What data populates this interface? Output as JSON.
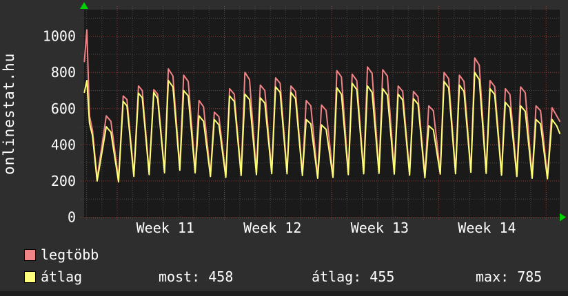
{
  "watermark": "onlinestat.hu",
  "legend": {
    "rows": [
      {
        "label": "legtöbb",
        "color": "#f08486"
      },
      {
        "label": "átlag",
        "color": "#ffff7d"
      }
    ],
    "stats": [
      {
        "text": "most: 458"
      },
      {
        "text": "átlag: 455"
      },
      {
        "text": "max: 785"
      }
    ]
  },
  "chart_data": {
    "type": "line",
    "title": "onlinestat.hu",
    "xlabel": "",
    "ylabel": "",
    "ylim": [
      0,
      1147
    ],
    "yticks": [
      0,
      200,
      400,
      600,
      800,
      1000
    ],
    "y_minor_ticks": [
      100,
      300,
      500,
      700,
      900,
      1100
    ],
    "x_tick_labels": [
      "Week 11",
      "Week 12",
      "Week 13",
      "Week 14"
    ],
    "x_total_days": 31.05,
    "week_start_day": 2.16,
    "week_label_center_day": 5.3,
    "days_per_week": 7,
    "grid": {
      "style": "dotted",
      "major_color": "#a03c38",
      "minor_color": "#4a4a4a"
    },
    "plot_background": "#1a1a1a",
    "axis_arrow_color": "#00d400",
    "legend_position": "bottom-left",
    "stats": {
      "most": 458,
      "atlag": 455,
      "max": 785
    },
    "series": [
      {
        "name": "legtöbb",
        "color": "#f08486",
        "points": [
          [
            0.02,
            860
          ],
          [
            0.18,
            1035
          ],
          [
            0.35,
            560
          ],
          [
            0.55,
            480
          ],
          [
            0.85,
            215
          ],
          [
            1.45,
            560
          ],
          [
            1.75,
            530
          ],
          [
            2.25,
            210
          ],
          [
            2.55,
            670
          ],
          [
            2.8,
            650
          ],
          [
            3.25,
            235
          ],
          [
            3.55,
            725
          ],
          [
            3.8,
            700
          ],
          [
            4.25,
            245
          ],
          [
            4.55,
            705
          ],
          [
            4.8,
            680
          ],
          [
            5.25,
            255
          ],
          [
            5.5,
            820
          ],
          [
            5.8,
            780
          ],
          [
            6.25,
            275
          ],
          [
            6.5,
            785
          ],
          [
            6.8,
            750
          ],
          [
            7.25,
            260
          ],
          [
            7.5,
            645
          ],
          [
            7.8,
            610
          ],
          [
            8.25,
            235
          ],
          [
            8.5,
            580
          ],
          [
            8.8,
            555
          ],
          [
            9.25,
            230
          ],
          [
            9.5,
            710
          ],
          [
            9.8,
            680
          ],
          [
            10.25,
            240
          ],
          [
            10.5,
            800
          ],
          [
            10.8,
            760
          ],
          [
            11.25,
            245
          ],
          [
            11.5,
            730
          ],
          [
            11.8,
            700
          ],
          [
            12.25,
            250
          ],
          [
            12.5,
            770
          ],
          [
            12.8,
            740
          ],
          [
            13.25,
            250
          ],
          [
            13.5,
            725
          ],
          [
            13.8,
            695
          ],
          [
            14.25,
            240
          ],
          [
            14.5,
            645
          ],
          [
            14.8,
            615
          ],
          [
            15.25,
            225
          ],
          [
            15.5,
            620
          ],
          [
            15.8,
            590
          ],
          [
            16.25,
            230
          ],
          [
            16.5,
            810
          ],
          [
            16.8,
            775
          ],
          [
            17.25,
            245
          ],
          [
            17.5,
            790
          ],
          [
            17.8,
            755
          ],
          [
            18.25,
            250
          ],
          [
            18.5,
            830
          ],
          [
            18.8,
            795
          ],
          [
            19.25,
            252
          ],
          [
            19.5,
            815
          ],
          [
            19.8,
            780
          ],
          [
            20.25,
            248
          ],
          [
            20.5,
            725
          ],
          [
            20.8,
            695
          ],
          [
            21.25,
            242
          ],
          [
            21.5,
            695
          ],
          [
            21.8,
            665
          ],
          [
            22.25,
            228
          ],
          [
            22.5,
            615
          ],
          [
            22.8,
            588
          ],
          [
            23.25,
            248
          ],
          [
            23.5,
            800
          ],
          [
            23.8,
            765
          ],
          [
            24.25,
            250
          ],
          [
            24.5,
            785
          ],
          [
            24.8,
            750
          ],
          [
            25.25,
            258
          ],
          [
            25.5,
            880
          ],
          [
            25.8,
            840
          ],
          [
            26.25,
            252
          ],
          [
            26.5,
            755
          ],
          [
            26.8,
            722
          ],
          [
            27.25,
            242
          ],
          [
            27.5,
            710
          ],
          [
            27.8,
            678
          ],
          [
            28.25,
            235
          ],
          [
            28.5,
            720
          ],
          [
            28.8,
            688
          ],
          [
            29.25,
            225
          ],
          [
            29.5,
            615
          ],
          [
            29.8,
            588
          ],
          [
            30.25,
            222
          ],
          [
            30.55,
            605
          ],
          [
            30.85,
            560
          ],
          [
            31.05,
            530
          ]
        ]
      },
      {
        "name": "átlag",
        "color": "#ffff78",
        "points": [
          [
            0.02,
            690
          ],
          [
            0.18,
            755
          ],
          [
            0.35,
            520
          ],
          [
            0.55,
            450
          ],
          [
            0.85,
            200
          ],
          [
            1.45,
            500
          ],
          [
            1.75,
            470
          ],
          [
            2.25,
            195
          ],
          [
            2.55,
            640
          ],
          [
            2.8,
            615
          ],
          [
            3.25,
            225
          ],
          [
            3.55,
            685
          ],
          [
            3.8,
            660
          ],
          [
            4.25,
            235
          ],
          [
            4.55,
            690
          ],
          [
            4.8,
            655
          ],
          [
            5.25,
            245
          ],
          [
            5.5,
            755
          ],
          [
            5.8,
            720
          ],
          [
            6.25,
            260
          ],
          [
            6.5,
            700
          ],
          [
            6.8,
            670
          ],
          [
            7.25,
            245
          ],
          [
            7.5,
            560
          ],
          [
            7.8,
            530
          ],
          [
            8.25,
            225
          ],
          [
            8.5,
            540
          ],
          [
            8.8,
            510
          ],
          [
            9.25,
            220
          ],
          [
            9.5,
            670
          ],
          [
            9.8,
            640
          ],
          [
            10.25,
            230
          ],
          [
            10.5,
            680
          ],
          [
            10.8,
            650
          ],
          [
            11.25,
            235
          ],
          [
            11.5,
            660
          ],
          [
            11.8,
            630
          ],
          [
            12.25,
            240
          ],
          [
            12.5,
            720
          ],
          [
            12.8,
            690
          ],
          [
            13.25,
            240
          ],
          [
            13.5,
            690
          ],
          [
            13.8,
            655
          ],
          [
            14.25,
            230
          ],
          [
            14.5,
            540
          ],
          [
            14.8,
            515
          ],
          [
            15.25,
            215
          ],
          [
            15.5,
            510
          ],
          [
            15.8,
            485
          ],
          [
            16.25,
            220
          ],
          [
            16.5,
            715
          ],
          [
            16.8,
            680
          ],
          [
            17.25,
            235
          ],
          [
            17.5,
            740
          ],
          [
            17.8,
            705
          ],
          [
            18.25,
            240
          ],
          [
            18.5,
            725
          ],
          [
            18.8,
            690
          ],
          [
            19.25,
            242
          ],
          [
            19.5,
            710
          ],
          [
            19.8,
            675
          ],
          [
            20.25,
            238
          ],
          [
            20.5,
            680
          ],
          [
            20.8,
            648
          ],
          [
            21.25,
            232
          ],
          [
            21.5,
            655
          ],
          [
            21.8,
            625
          ],
          [
            22.25,
            218
          ],
          [
            22.5,
            505
          ],
          [
            22.8,
            482
          ],
          [
            23.25,
            238
          ],
          [
            23.5,
            750
          ],
          [
            23.8,
            715
          ],
          [
            24.25,
            240
          ],
          [
            24.5,
            730
          ],
          [
            24.8,
            695
          ],
          [
            25.25,
            248
          ],
          [
            25.5,
            800
          ],
          [
            25.8,
            760
          ],
          [
            26.25,
            242
          ],
          [
            26.5,
            710
          ],
          [
            26.8,
            678
          ],
          [
            27.25,
            232
          ],
          [
            27.5,
            635
          ],
          [
            27.8,
            605
          ],
          [
            28.25,
            225
          ],
          [
            28.5,
            615
          ],
          [
            28.8,
            585
          ],
          [
            29.25,
            215
          ],
          [
            29.5,
            540
          ],
          [
            29.8,
            515
          ],
          [
            30.25,
            212
          ],
          [
            30.55,
            540
          ],
          [
            30.85,
            505
          ],
          [
            31.05,
            463
          ]
        ]
      }
    ]
  }
}
